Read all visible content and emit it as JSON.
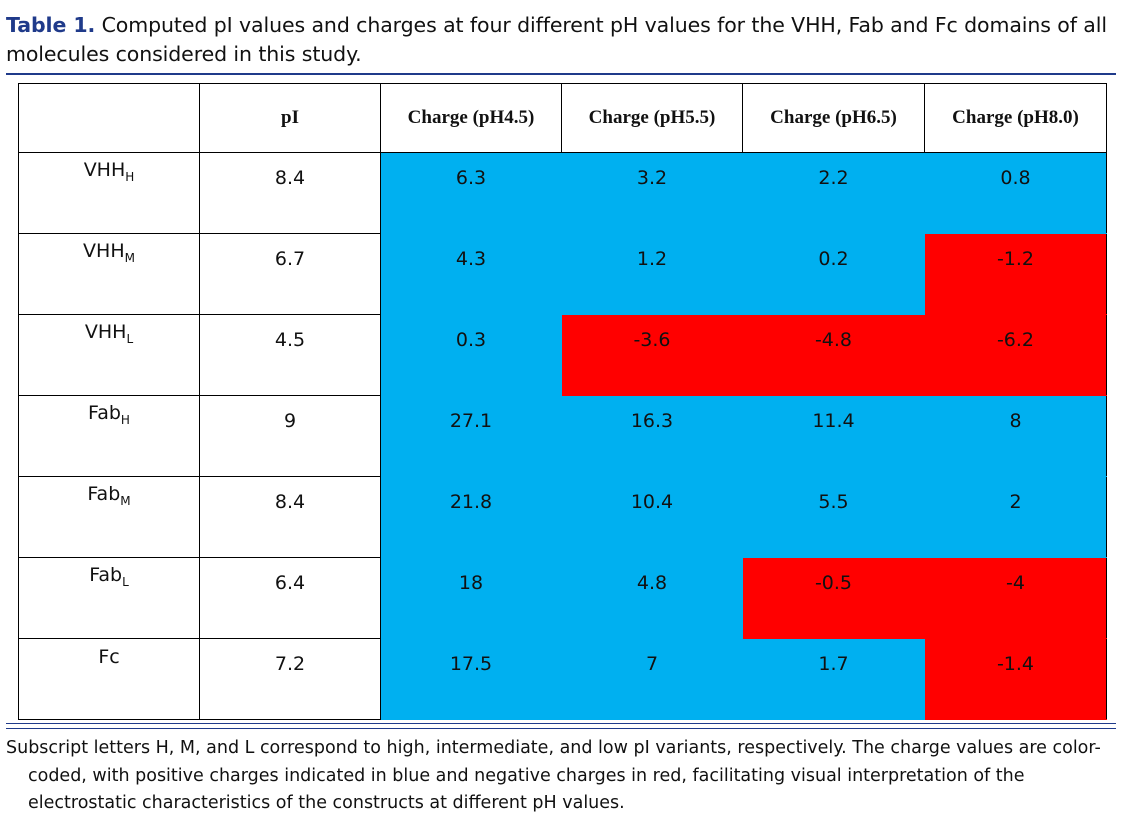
{
  "caption": {
    "label": "Table 1.",
    "text": " Computed pI values and charges at four different pH values for the VHH, Fab and Fc domains of all molecules considered in this study."
  },
  "table": {
    "headers": [
      "",
      "pI",
      "Charge (pH4.5)",
      "Charge (pH5.5)",
      "Charge (pH6.5)",
      "Charge (pH8.0)"
    ],
    "rows": [
      {
        "name": "VHH",
        "sub": "H",
        "pI": "8.4",
        "charges": [
          "6.3",
          "3.2",
          "2.2",
          "0.8"
        ]
      },
      {
        "name": "VHH",
        "sub": "M",
        "pI": "6.7",
        "charges": [
          "4.3",
          "1.2",
          "0.2",
          "-1.2"
        ]
      },
      {
        "name": "VHH",
        "sub": "L",
        "pI": "4.5",
        "charges": [
          "0.3",
          "-3.6",
          "-4.8",
          "-6.2"
        ]
      },
      {
        "name": "Fab",
        "sub": "H",
        "pI": "9",
        "charges": [
          "27.1",
          "16.3",
          "11.4",
          "8"
        ]
      },
      {
        "name": "Fab",
        "sub": "M",
        "pI": "8.4",
        "charges": [
          "21.8",
          "10.4",
          "5.5",
          "2"
        ]
      },
      {
        "name": "Fab",
        "sub": "L",
        "pI": "6.4",
        "charges": [
          "18",
          "4.8",
          "-0.5",
          "-4"
        ]
      },
      {
        "name": "Fc",
        "sub": "",
        "pI": "7.2",
        "charges": [
          "17.5",
          "7",
          "1.7",
          "-1.4"
        ]
      }
    ],
    "colors": {
      "positive": "#00b0f0",
      "negative": "#ff0000"
    }
  },
  "footnote": "Subscript letters H, M, and L correspond to high, intermediate, and low pI variants, respectively. The charge values are color-coded, with positive charges indicated in blue and negative charges in red, facilitating visual interpretation of the electrostatic characteristics of the constructs at different pH values."
}
